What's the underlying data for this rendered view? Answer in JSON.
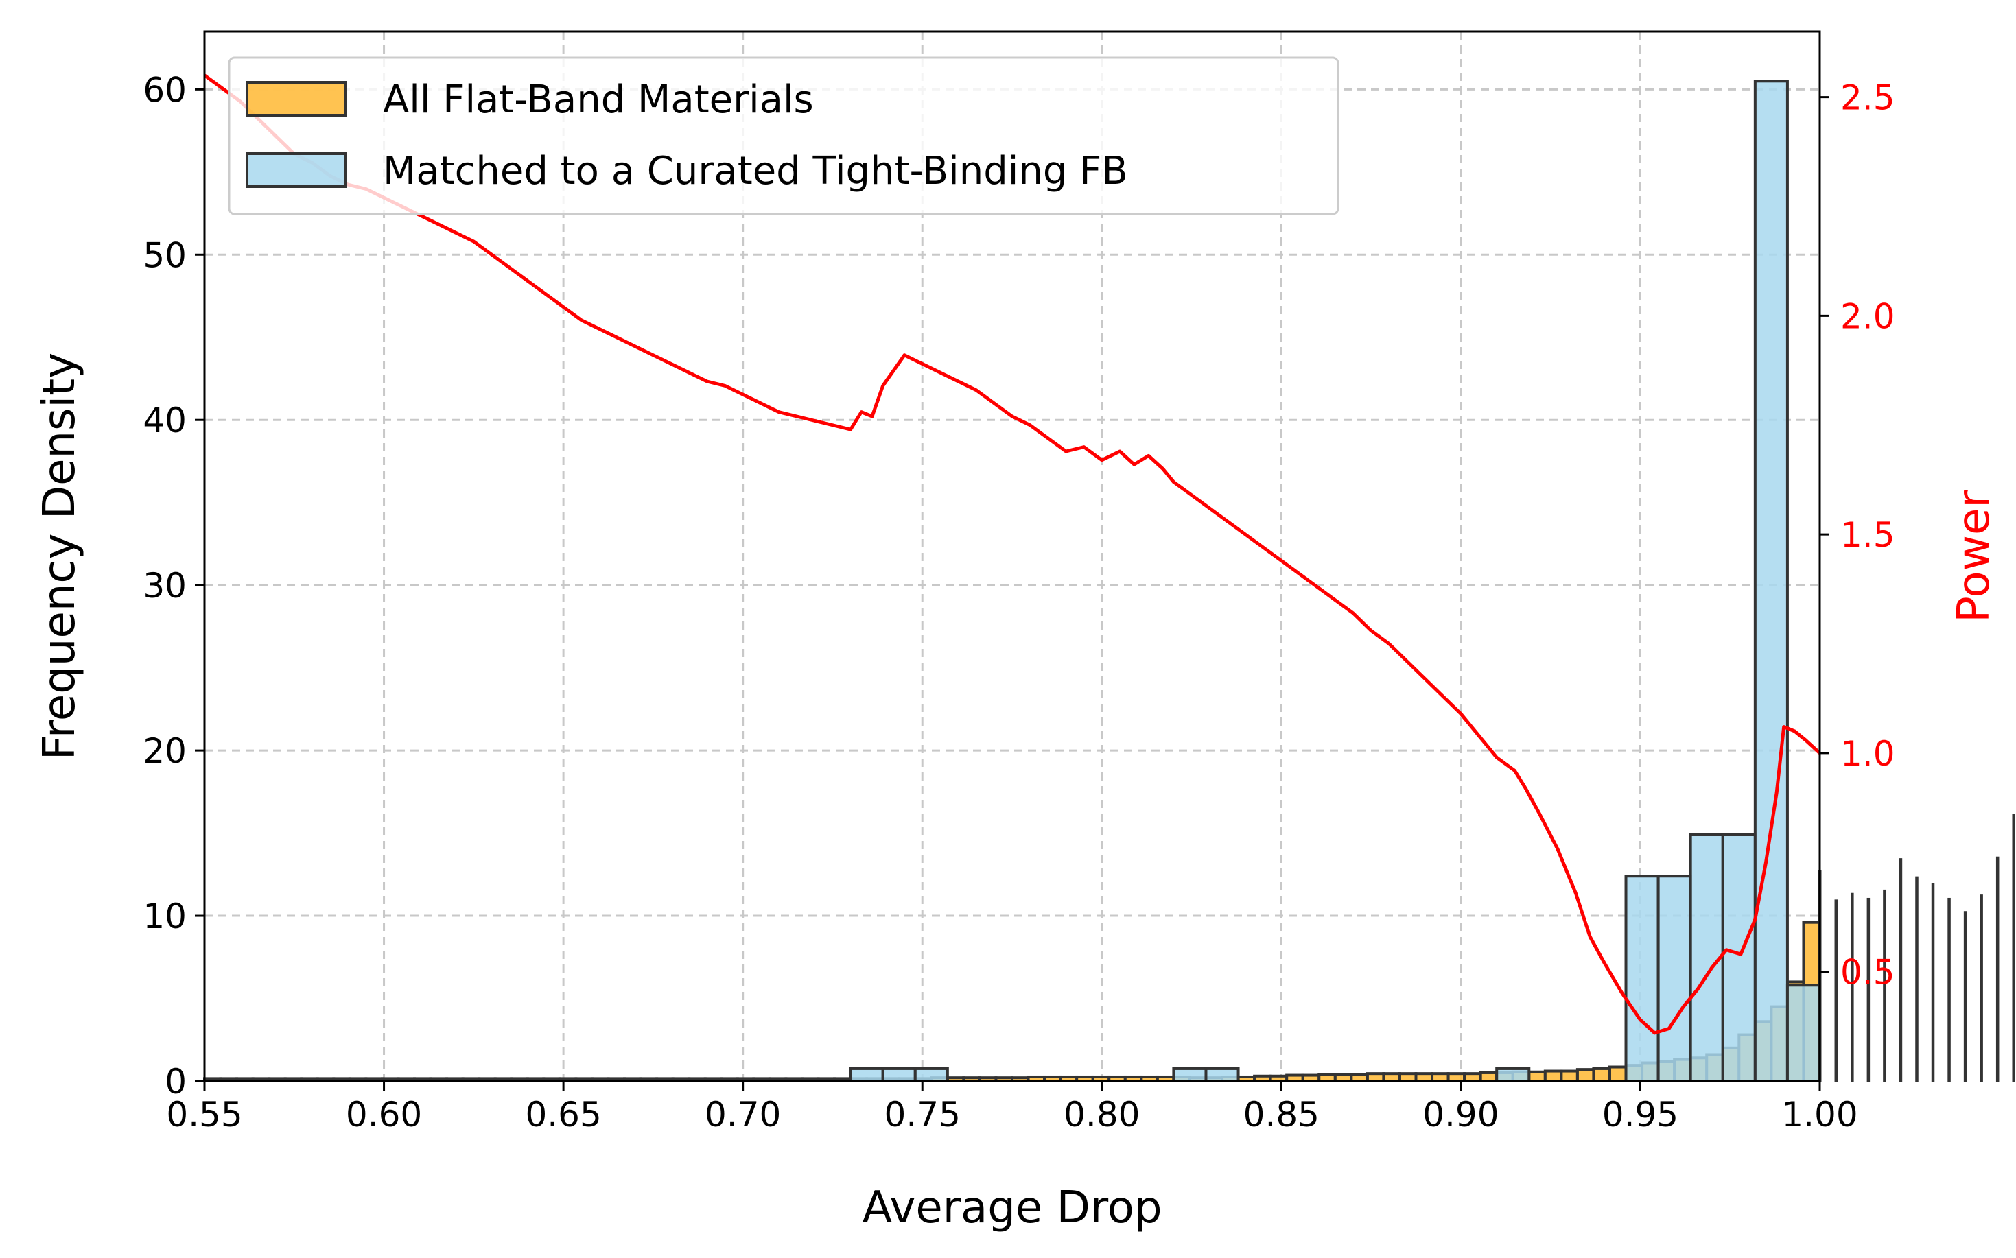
{
  "chart_data": {
    "type": "bar",
    "xlabel": "Average Drop",
    "ylabel": "Frequency Density",
    "y2label": "Power",
    "xlim": [
      0.55,
      1.0
    ],
    "ylim": [
      0,
      63.5
    ],
    "y2lim": [
      0.25,
      2.65
    ],
    "xticks": [
      "0.55",
      "0.60",
      "0.65",
      "0.70",
      "0.75",
      "0.80",
      "0.85",
      "0.90",
      "0.95",
      "1.00"
    ],
    "yticks": [
      "0",
      "10",
      "20",
      "30",
      "40",
      "50",
      "60"
    ],
    "y2ticks": [
      "0.5",
      "1.0",
      "1.5",
      "2.0",
      "2.5"
    ],
    "grid": true,
    "legend_position": "upper-left",
    "colors": {
      "all_fill": "#ffb833",
      "matched_fill": "#a8d8ee",
      "edge": "#333333",
      "power": "#ff0000",
      "grid": "#c8c8c8"
    },
    "series": [
      {
        "name": "All Flat-Band Materials",
        "kind": "histogram",
        "bin_start": 0.55,
        "bin_width": 0.0045,
        "values": [
          0.15,
          0.15,
          0.15,
          0.15,
          0.15,
          0.15,
          0.15,
          0.15,
          0.15,
          0.15,
          0.15,
          0.15,
          0.15,
          0.15,
          0.15,
          0.15,
          0.15,
          0.15,
          0.15,
          0.15,
          0.15,
          0.15,
          0.15,
          0.15,
          0.15,
          0.15,
          0.15,
          0.15,
          0.15,
          0.15,
          0.15,
          0.15,
          0.15,
          0.15,
          0.15,
          0.15,
          0.15,
          0.15,
          0.15,
          0.15,
          0.15,
          0.15,
          0.15,
          0.15,
          0.15,
          0.2,
          0.2,
          0.2,
          0.2,
          0.2,
          0.2,
          0.25,
          0.25,
          0.25,
          0.25,
          0.25,
          0.25,
          0.25,
          0.25,
          0.25,
          0.25,
          0.2,
          0.2,
          0.25,
          0.25,
          0.3,
          0.3,
          0.35,
          0.35,
          0.4,
          0.4,
          0.4,
          0.45,
          0.45,
          0.45,
          0.45,
          0.45,
          0.45,
          0.45,
          0.5,
          0.5,
          0.55,
          0.55,
          0.6,
          0.6,
          0.7,
          0.75,
          0.85,
          0.95,
          1.1,
          1.2,
          1.3,
          1.4,
          1.6,
          2.0,
          2.8,
          3.6,
          4.5,
          6.0,
          9.6,
          12.7,
          10.9,
          11.3,
          11.0,
          11.5,
          13.4,
          12.3,
          11.9,
          11.0,
          10.2,
          11.2,
          13.5,
          16.1,
          14.1,
          10.3
        ]
      },
      {
        "name": "Matched to a Curated Tight-Binding FB",
        "kind": "histogram",
        "bin_start": 0.55,
        "bin_width": 0.009,
        "values": [
          0.1,
          0.1,
          0.1,
          0.1,
          0.1,
          0.1,
          0.1,
          0.1,
          0.1,
          0.1,
          0.1,
          0.1,
          0.1,
          0.1,
          0.1,
          0.1,
          0.1,
          0.1,
          0.1,
          0.1,
          0.75,
          0.75,
          0.75,
          0.0,
          0.0,
          0.0,
          0.0,
          0.0,
          0.0,
          0.0,
          0.75,
          0.75,
          0.0,
          0.0,
          0.0,
          0.0,
          0.0,
          0.0,
          0.0,
          0.0,
          0.75,
          0.0,
          0.0,
          0.0,
          12.4,
          12.4,
          14.9,
          14.9,
          60.5,
          5.8
        ]
      },
      {
        "name": "Power",
        "kind": "line",
        "axis": "right",
        "x": [
          0.55,
          0.555,
          0.56,
          0.565,
          0.57,
          0.575,
          0.58,
          0.585,
          0.59,
          0.595,
          0.6,
          0.605,
          0.61,
          0.615,
          0.62,
          0.625,
          0.63,
          0.635,
          0.64,
          0.645,
          0.65,
          0.655,
          0.66,
          0.665,
          0.67,
          0.675,
          0.68,
          0.685,
          0.69,
          0.695,
          0.7,
          0.705,
          0.71,
          0.715,
          0.72,
          0.725,
          0.73,
          0.733,
          0.736,
          0.739,
          0.745,
          0.75,
          0.755,
          0.76,
          0.765,
          0.77,
          0.775,
          0.78,
          0.785,
          0.79,
          0.795,
          0.8,
          0.805,
          0.809,
          0.813,
          0.817,
          0.82,
          0.825,
          0.83,
          0.835,
          0.84,
          0.845,
          0.85,
          0.855,
          0.86,
          0.865,
          0.87,
          0.875,
          0.88,
          0.885,
          0.89,
          0.895,
          0.9,
          0.905,
          0.91,
          0.915,
          0.918,
          0.922,
          0.927,
          0.932,
          0.936,
          0.94,
          0.945,
          0.95,
          0.954,
          0.958,
          0.962,
          0.966,
          0.97,
          0.974,
          0.978,
          0.982,
          0.985,
          0.988,
          0.99,
          0.993,
          0.996,
          1.0
        ],
        "y": [
          2.55,
          2.52,
          2.49,
          2.45,
          2.41,
          2.37,
          2.35,
          2.32,
          2.3,
          2.29,
          2.27,
          2.25,
          2.23,
          2.21,
          2.19,
          2.17,
          2.14,
          2.11,
          2.08,
          2.05,
          2.02,
          1.99,
          1.97,
          1.95,
          1.93,
          1.91,
          1.89,
          1.87,
          1.85,
          1.84,
          1.82,
          1.8,
          1.78,
          1.77,
          1.76,
          1.75,
          1.74,
          1.78,
          1.77,
          1.84,
          1.91,
          1.89,
          1.87,
          1.85,
          1.83,
          1.8,
          1.77,
          1.75,
          1.72,
          1.69,
          1.7,
          1.67,
          1.69,
          1.66,
          1.68,
          1.65,
          1.62,
          1.59,
          1.56,
          1.53,
          1.5,
          1.47,
          1.44,
          1.41,
          1.38,
          1.35,
          1.32,
          1.28,
          1.25,
          1.21,
          1.17,
          1.13,
          1.09,
          1.04,
          0.99,
          0.96,
          0.92,
          0.86,
          0.78,
          0.68,
          0.58,
          0.52,
          0.45,
          0.39,
          0.36,
          0.37,
          0.42,
          0.46,
          0.51,
          0.55,
          0.54,
          0.62,
          0.75,
          0.91,
          1.06,
          1.05,
          1.03,
          1.0
        ]
      }
    ]
  }
}
